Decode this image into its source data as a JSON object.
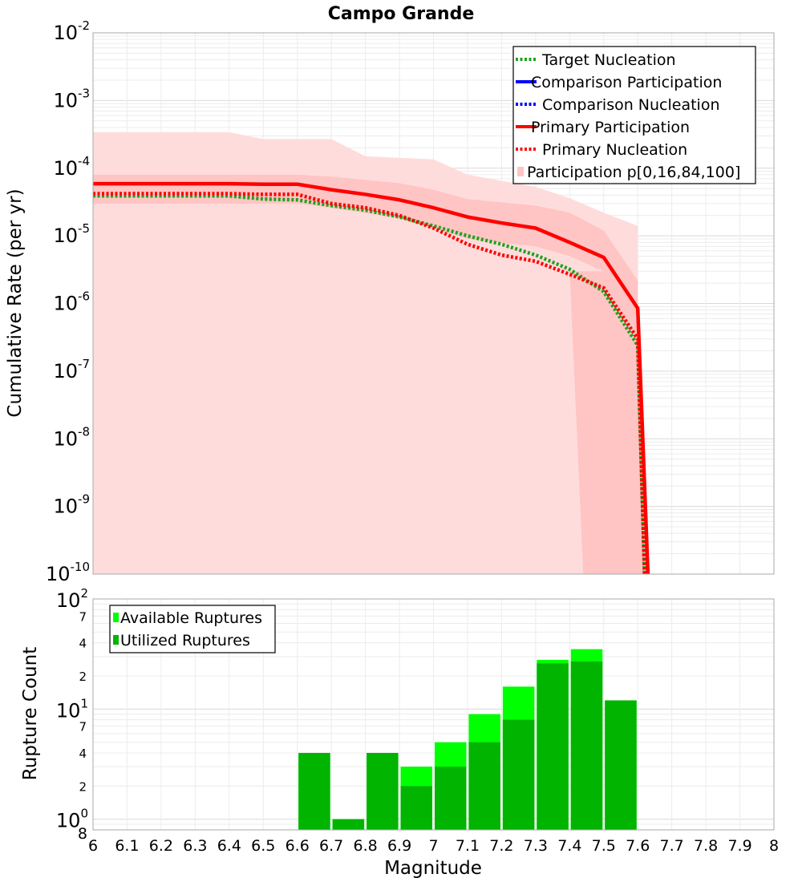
{
  "chart_data": [
    {
      "type": "line",
      "title": "Campo Grande",
      "xlabel": "",
      "ylabel": "Cumulative Rate (per yr)",
      "xlim": [
        6,
        8
      ],
      "ylim": [
        1e-10,
        0.01
      ],
      "y_scale": "log",
      "grid": true,
      "legend_position": "top-right",
      "y_ticks": [
        {
          "base": "10",
          "exp": "-2"
        },
        {
          "base": "10",
          "exp": "-3"
        },
        {
          "base": "10",
          "exp": "-4"
        },
        {
          "base": "10",
          "exp": "-5"
        },
        {
          "base": "10",
          "exp": "-6"
        },
        {
          "base": "10",
          "exp": "-7"
        },
        {
          "base": "10",
          "exp": "-8"
        },
        {
          "base": "10",
          "exp": "-9"
        },
        {
          "base": "10",
          "exp": "-10"
        }
      ],
      "series": [
        {
          "name": "Target Nucleation",
          "style": "dotted",
          "color": "#1ea21e",
          "x": [
            6.0,
            6.1,
            6.2,
            6.3,
            6.4,
            6.5,
            6.6,
            6.7,
            6.8,
            6.9,
            7.0,
            7.1,
            7.2,
            7.3,
            7.4,
            7.5,
            7.6,
            7.62
          ],
          "y": [
            3.9e-05,
            3.9e-05,
            3.9e-05,
            3.9e-05,
            3.9e-05,
            3.5e-05,
            3.4e-05,
            2.8e-05,
            2.4e-05,
            1.9e-05,
            1.4e-05,
            1e-05,
            7.5e-06,
            5.2e-06,
            3.2e-06,
            1.5e-06,
            2.4e-07,
            1e-10
          ]
        },
        {
          "name": "Comparison Participation",
          "style": "solid",
          "color": "#0000ff",
          "x": [],
          "y": []
        },
        {
          "name": "Comparison Nucleation",
          "style": "dotted",
          "color": "#0000ff",
          "x": [],
          "y": []
        },
        {
          "name": "Primary Participation",
          "style": "solid",
          "color": "#ff0000",
          "x": [
            6.0,
            6.1,
            6.2,
            6.3,
            6.4,
            6.5,
            6.6,
            6.7,
            6.8,
            6.9,
            7.0,
            7.1,
            7.2,
            7.3,
            7.4,
            7.5,
            7.6,
            7.63
          ],
          "y": [
            5.9e-05,
            5.9e-05,
            5.9e-05,
            5.9e-05,
            5.9e-05,
            5.8e-05,
            5.8e-05,
            4.8e-05,
            4.1e-05,
            3.4e-05,
            2.6e-05,
            1.9e-05,
            1.55e-05,
            1.3e-05,
            8e-06,
            4.8e-06,
            8.5e-07,
            1e-10
          ]
        },
        {
          "name": "Primary Nucleation",
          "style": "dotted",
          "color": "#ff0000",
          "x": [
            6.0,
            6.1,
            6.2,
            6.3,
            6.4,
            6.5,
            6.6,
            6.7,
            6.8,
            6.9,
            7.0,
            7.1,
            7.2,
            7.3,
            7.4,
            7.5,
            7.6,
            7.62
          ],
          "y": [
            4.2e-05,
            4.2e-05,
            4.2e-05,
            4.2e-05,
            4.2e-05,
            4.1e-05,
            4.1e-05,
            3e-05,
            2.6e-05,
            2e-05,
            1.3e-05,
            7.5e-06,
            5.2e-06,
            4.2e-06,
            2.7e-06,
            1.7e-06,
            3e-07,
            1e-10
          ]
        },
        {
          "name": "Participation p[0,16,84,100]",
          "style": "band",
          "color": "#ffc0c0",
          "outer_x": [
            6.0,
            6.4,
            6.5,
            6.7,
            6.8,
            7.0,
            7.1,
            7.3,
            7.4,
            7.5,
            7.6
          ],
          "outer_upper": [
            0.00034,
            0.00034,
            0.00027,
            0.00027,
            0.00015,
            0.000135,
            8e-05,
            5.3e-05,
            3.6e-05,
            2.2e-05,
            1.4e-05
          ],
          "inner_x": [
            6.0,
            6.6,
            6.7,
            6.9,
            7.0,
            7.1,
            7.3,
            7.4,
            7.5,
            7.6
          ],
          "inner_lower": [
            3e-05,
            3e-05,
            2.6e-05,
            1.8e-05,
            1.3e-05,
            9e-06,
            7e-06,
            5e-06,
            3e-06,
            5e-07
          ],
          "inner_upper": [
            8e-05,
            8e-05,
            7.5e-05,
            6e-05,
            4.8e-05,
            3.5e-05,
            2.8e-05,
            2.2e-05,
            1.2e-05,
            2.2e-06
          ]
        }
      ]
    },
    {
      "type": "bar",
      "title": "",
      "xlabel": "Magnitude",
      "ylabel": "Rupture Count",
      "xlim": [
        6,
        8
      ],
      "ylim": [
        0.8,
        100
      ],
      "y_scale": "log",
      "grid": true,
      "legend_position": "top-left",
      "bin_width": 0.1,
      "categories": [
        6.65,
        6.75,
        6.85,
        6.95,
        7.05,
        7.15,
        7.25,
        7.35,
        7.45,
        7.55
      ],
      "series": [
        {
          "name": "Available Ruptures",
          "color": "#00ff00",
          "values": [
            4,
            1,
            4,
            3,
            5,
            9,
            16,
            28,
            35,
            12
          ]
        },
        {
          "name": "Utilized Ruptures",
          "color": "#00b400",
          "values": [
            4,
            1,
            4,
            2,
            3,
            5,
            8,
            26,
            27,
            12
          ]
        }
      ],
      "x_ticks": [
        "6",
        "6.1",
        "6.2",
        "6.3",
        "6.4",
        "6.5",
        "6.6",
        "6.7",
        "6.8",
        "6.9",
        "7",
        "7.1",
        "7.2",
        "7.3",
        "7.4",
        "7.5",
        "7.6",
        "7.7",
        "7.8",
        "7.9",
        "8"
      ],
      "y_major_ticks": [
        {
          "base": "10",
          "exp": "2"
        },
        {
          "base": "10",
          "exp": "1"
        },
        {
          "base": "10",
          "exp": "0"
        }
      ],
      "y_minor_labels": [
        "7",
        "4",
        "2",
        "7",
        "4",
        "2",
        "8"
      ]
    }
  ]
}
